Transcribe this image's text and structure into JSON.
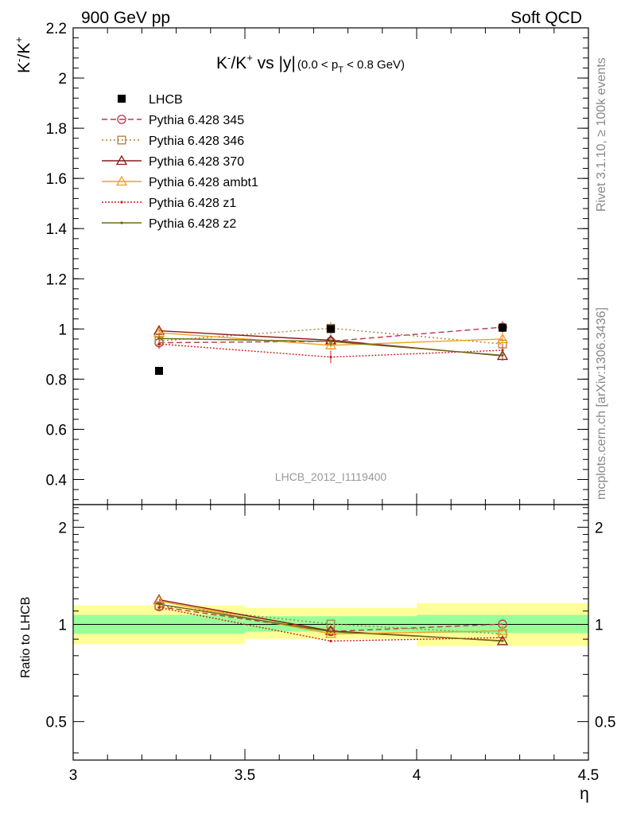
{
  "header": {
    "left": "900 GeV pp",
    "right": "Soft QCD"
  },
  "side_labels": {
    "rivet": "Rivet 3.1.10, ≥ 100k events",
    "mcplots": "mcplots.cern.ch [arXiv:1306.3436]"
  },
  "colors": {
    "data": "#000000",
    "p345": "#b8394f",
    "p346": "#a8813a",
    "p370": "#8b1a1a",
    "ambt1": "#f0a020",
    "z1": "#cc1f1f",
    "z2": "#6b6b12",
    "band_inner": "#99ff99",
    "band_outer": "#ffff99"
  },
  "chart_data": [
    {
      "type": "line",
      "title": "K⁻/K⁺ vs |y|",
      "title_suffix": "(0.0 < p_T < 0.8 GeV)",
      "title_parts": {
        "main_a": "K",
        "sup_a": "-",
        "main_b": "/K",
        "sup_b": "+",
        "main_c": " vs |y|",
        "suffix_a": "(0.0 < p",
        "suffix_sub": "T",
        "suffix_b": " < 0.8 GeV)"
      },
      "ylabel": "K⁻/K⁺",
      "ylabel_parts": {
        "a": "K",
        "sup_a": "-",
        "b": "/K",
        "sup_b": "+"
      },
      "watermark": "LHCB_2012_I1119400",
      "xlim": [
        3,
        4.5
      ],
      "ylim": [
        0.3,
        2.2
      ],
      "yticks": [
        {
          "v": 0.4,
          "label": "0.4"
        },
        {
          "v": 0.6,
          "label": "0.6"
        },
        {
          "v": 0.8,
          "label": "0.8"
        },
        {
          "v": 1.0,
          "label": "1"
        },
        {
          "v": 1.2,
          "label": "1.2"
        },
        {
          "v": 1.4,
          "label": "1.4"
        },
        {
          "v": 1.6,
          "label": "1.6"
        },
        {
          "v": 1.8,
          "label": "1.8"
        },
        {
          "v": 2.0,
          "label": "2"
        },
        {
          "v": 2.2,
          "label": "2.2"
        }
      ],
      "x": [
        3.25,
        3.75,
        4.25
      ],
      "data_series": {
        "name": "LHCB",
        "values": [
          0.833,
          1.0,
          1.005
        ],
        "errors": [
          0.005,
          0.01,
          0.012
        ]
      },
      "series": [
        {
          "key": "p345",
          "name": "Pythia 6.428 345",
          "values": [
            0.945,
            0.951,
            1.007
          ],
          "errors": [
            0.02,
            0.02,
            0.025
          ],
          "dash": "7,4",
          "marker": "circle"
        },
        {
          "key": "p346",
          "name": "Pythia 6.428 346",
          "values": [
            0.952,
            1.003,
            0.94
          ],
          "errors": [
            0.02,
            0.025,
            0.025
          ],
          "dash": "2,3",
          "marker": "square"
        },
        {
          "key": "p370",
          "name": "Pythia 6.428 370",
          "values": [
            0.993,
            0.955,
            0.893
          ],
          "errors": [
            0.02,
            0.02,
            0.02
          ],
          "dash": "",
          "marker": "triangle"
        },
        {
          "key": "ambt1",
          "name": "Pythia 6.428 ambt1",
          "values": [
            0.985,
            0.935,
            0.96
          ],
          "errors": [
            0.02,
            0.02,
            0.025
          ],
          "dash": "",
          "marker": "triangle"
        },
        {
          "key": "z1",
          "name": "Pythia 6.428 z1",
          "values": [
            0.94,
            0.888,
            0.915
          ],
          "errors": [
            0.02,
            0.025,
            0.025
          ],
          "dash": "2,2",
          "marker": "dot"
        },
        {
          "key": "z2",
          "name": "Pythia 6.428 z2",
          "values": [
            0.962,
            0.95,
            0.895
          ],
          "errors": [
            0.02,
            0.02,
            0.02
          ],
          "dash": "",
          "marker": "dot"
        }
      ]
    },
    {
      "type": "line",
      "ylabel": "Ratio to LHCB",
      "xlabel": "η",
      "xlim": [
        3,
        4.5
      ],
      "ylim": [
        0.38,
        2.35
      ],
      "log_y": true,
      "xticks": [
        {
          "v": 3.0,
          "label": "3"
        },
        {
          "v": 3.5,
          "label": "3.5"
        },
        {
          "v": 4.0,
          "label": "4"
        },
        {
          "v": 4.5,
          "label": "4.5"
        }
      ],
      "yticks": [
        {
          "v": 0.5,
          "label": "0.5"
        },
        {
          "v": 1.0,
          "label": "1"
        },
        {
          "v": 2.0,
          "label": "2"
        }
      ],
      "bins": [
        [
          3.0,
          3.5
        ],
        [
          3.5,
          4.0
        ],
        [
          4.0,
          4.5
        ]
      ],
      "bands": {
        "inner": [
          [
            0.935,
            1.07
          ],
          [
            0.95,
            1.06
          ],
          [
            0.94,
            1.07
          ]
        ],
        "outer": [
          [
            0.868,
            1.145
          ],
          [
            0.902,
            1.125
          ],
          [
            0.857,
            1.165
          ]
        ]
      },
      "x": [
        3.25,
        3.75,
        4.25
      ],
      "series": [
        {
          "key": "p345",
          "values": [
            1.135,
            0.951,
            1.002
          ]
        },
        {
          "key": "p346",
          "values": [
            1.143,
            1.003,
            0.935
          ]
        },
        {
          "key": "p370",
          "values": [
            1.192,
            0.955,
            0.888
          ]
        },
        {
          "key": "ambt1",
          "values": [
            1.182,
            0.935,
            0.955
          ]
        },
        {
          "key": "z1",
          "values": [
            1.128,
            0.888,
            0.91
          ]
        },
        {
          "key": "z2",
          "values": [
            1.155,
            0.95,
            0.89
          ]
        }
      ]
    }
  ]
}
